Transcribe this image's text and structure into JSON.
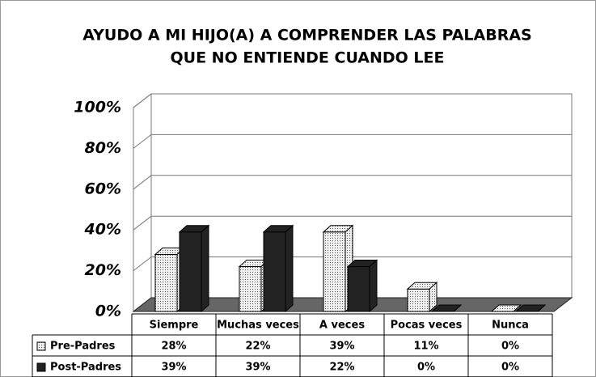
{
  "chart_data": {
    "type": "bar3d",
    "title": [
      "AYUDO A MI HIJO(A) A COMPRENDER LAS PALABRAS",
      "QUE NO ENTIENDE CUANDO LEE"
    ],
    "categories": [
      "Siempre",
      "Muchas veces",
      "A veces",
      "Pocas veces",
      "Nunca"
    ],
    "series": [
      {
        "name": "Pre-Padres",
        "color": "#d8d8d8",
        "values": [
          28,
          22,
          39,
          11,
          0
        ],
        "value_labels": [
          "28%",
          "22%",
          "39%",
          "11%",
          "0%"
        ]
      },
      {
        "name": "Post-Padres",
        "color": "#222222",
        "values": [
          39,
          39,
          22,
          0,
          0
        ],
        "value_labels": [
          "39%",
          "39%",
          "22%",
          "0%",
          "0%"
        ]
      }
    ],
    "ylim": [
      0,
      100
    ],
    "yticks": [
      {
        "value": 0,
        "label": "0%"
      },
      {
        "value": 20,
        "label": "20%"
      },
      {
        "value": 40,
        "label": "40%"
      },
      {
        "value": 60,
        "label": "60%"
      },
      {
        "value": 80,
        "label": "80%"
      },
      {
        "value": 100,
        "label": "100%"
      }
    ],
    "grid": true
  }
}
